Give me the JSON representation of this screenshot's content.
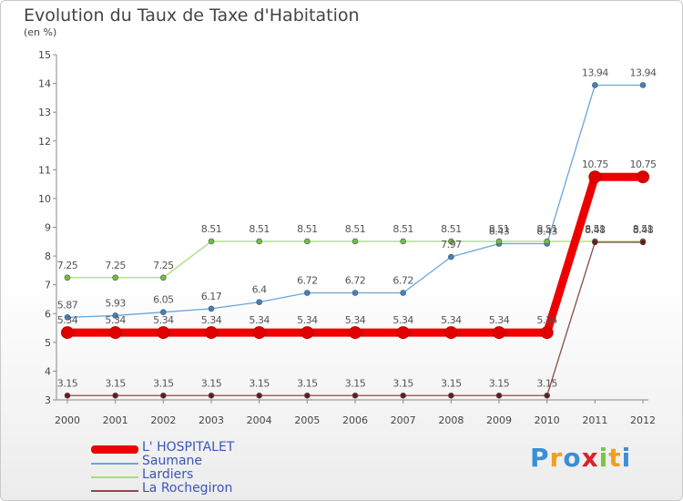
{
  "title": "Evolution du Taux de Taxe d'Habitation",
  "unit": "(en %)",
  "logo_letters": [
    {
      "ch": "P",
      "color": "#3a8fd6"
    },
    {
      "ch": "r",
      "color": "#f0a020"
    },
    {
      "ch": "o",
      "color": "#3a8fd6"
    },
    {
      "ch": "x",
      "color": "#d8242a"
    },
    {
      "ch": "i",
      "color": "#7cc242"
    },
    {
      "ch": "t",
      "color": "#f0a020"
    },
    {
      "ch": "i",
      "color": "#3a8fd6"
    }
  ],
  "chart_data": {
    "type": "line",
    "title": "Evolution du Taux de Taxe d'Habitation",
    "ylabel": "(en %)",
    "xlabel": "",
    "x": [
      "2000",
      "2001",
      "2002",
      "2003",
      "2004",
      "2005",
      "2006",
      "2007",
      "2008",
      "2009",
      "2010",
      "2011",
      "2012"
    ],
    "ylim": [
      3,
      15
    ],
    "yticks": [
      3,
      4,
      5,
      6,
      7,
      8,
      9,
      10,
      11,
      12,
      13,
      14,
      15
    ],
    "grid": false,
    "legend_position": "bottom-left",
    "series": [
      {
        "name": "L' HOSPITALET",
        "color": "#ee0000",
        "marker": "#e00000",
        "thick": true,
        "values": [
          5.34,
          5.34,
          5.34,
          5.34,
          5.34,
          5.34,
          5.34,
          5.34,
          5.34,
          5.34,
          5.34,
          10.75,
          10.75
        ],
        "labels": [
          "5.34",
          "5.34",
          "5.34",
          "5.34",
          "5.34",
          "5.34",
          "5.34",
          "5.34",
          "5.34",
          "5.34",
          "5.34",
          "10.75",
          "10.75"
        ]
      },
      {
        "name": "Saumane",
        "color": "#6aa6d8",
        "marker": "#3d82c4",
        "thick": false,
        "values": [
          5.87,
          5.93,
          6.05,
          6.17,
          6.4,
          6.72,
          6.72,
          6.72,
          7.97,
          8.43,
          8.43,
          13.94,
          13.94
        ],
        "labels": [
          "5.87",
          "5.93",
          "6.05",
          "6.17",
          "6.4",
          "6.72",
          "6.72",
          "6.72",
          "7.97",
          "8.43",
          "8.43",
          "13.94",
          "13.94"
        ]
      },
      {
        "name": "Lardiers",
        "color": "#a8dc78",
        "marker": "#6cc23a",
        "thick": false,
        "values": [
          7.25,
          7.25,
          7.25,
          8.51,
          8.51,
          8.51,
          8.51,
          8.51,
          8.51,
          8.51,
          8.51,
          8.51,
          8.51
        ],
        "labels": [
          "7.25",
          "7.25",
          "7.25",
          "8.51",
          "8.51",
          "8.51",
          "8.51",
          "8.51",
          "8.51",
          "8.51",
          "8.51",
          "8.51",
          "8.51"
        ]
      },
      {
        "name": "La Rochegiron",
        "color": "#8e4a4a",
        "marker": "#6a1a1a",
        "thick": false,
        "values": [
          3.15,
          3.15,
          3.15,
          3.15,
          3.15,
          3.15,
          3.15,
          3.15,
          3.15,
          3.15,
          3.15,
          8.48,
          8.48
        ],
        "labels": [
          "3.15",
          "3.15",
          "3.15",
          "3.15",
          "3.15",
          "3.15",
          "3.15",
          "3.15",
          "3.15",
          "3.15",
          "3.15",
          "8.48",
          "8.48"
        ]
      }
    ]
  }
}
